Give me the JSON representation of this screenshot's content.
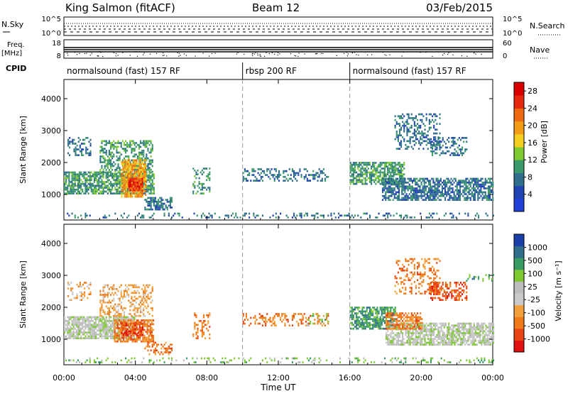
{
  "header": {
    "station": "King Salmon (fitACF)",
    "beam": "Beam 12",
    "date": "03/Feb/2015"
  },
  "sky_panel": {
    "label": "N.Sky",
    "ticks_left": [
      "10^5",
      "10^0"
    ],
    "right_label": "N.Search",
    "ticks_right": [
      "10^5",
      "10^0"
    ]
  },
  "freq_panel": {
    "label_line1": "Freq.",
    "label_line2": "[MHz]",
    "ticks_left": [
      "18",
      "8"
    ],
    "right_label": "Nave",
    "ticks_right": [
      "60",
      "0"
    ]
  },
  "cpid": {
    "label": "CPID",
    "segments": [
      {
        "name": "normalsound (fast) 157 RF",
        "start": 0,
        "end": 10
      },
      {
        "name": "rbsp 200 RF",
        "start": 10,
        "end": 16
      },
      {
        "name": "normalsound (fast) 157 RF",
        "start": 16,
        "end": 24
      }
    ]
  },
  "colors": {
    "power": [
      "#1f3fd6",
      "#2244b3",
      "#2f6f8c",
      "#3c9a6a",
      "#7ec832",
      "#f2cf1e",
      "#f39c16",
      "#ee6a12",
      "#e62a12",
      "#d90000"
    ],
    "velocity": [
      "#1a3fa8",
      "#2f6f8c",
      "#3a9a64",
      "#7ec832",
      "#bdbdbd",
      "#c9c9c9",
      "#f2a13a",
      "#ee7a18",
      "#e84512",
      "#e01010"
    ]
  },
  "chart_data": [
    {
      "type": "heatmap",
      "name": "power-panel",
      "ylabel": "Slant Range [km]",
      "xlabel": "Time UT",
      "xlim": [
        0,
        24
      ],
      "ylim": [
        200,
        4600
      ],
      "xticks": [
        {
          "v": 0,
          "label": "00:00"
        },
        {
          "v": 4,
          "label": "04:00"
        },
        {
          "v": 8,
          "label": "08:00"
        },
        {
          "v": 12,
          "label": "12:00"
        },
        {
          "v": 16,
          "label": "16:00"
        },
        {
          "v": 20,
          "label": "20:00"
        },
        {
          "v": 24,
          "label": "00:00"
        }
      ],
      "yticks": [
        1000,
        2000,
        3000,
        4000
      ],
      "colorbar": {
        "label": "Power [dB]",
        "ticks": [
          "4",
          "8",
          "12",
          "16",
          "20",
          "24",
          "28"
        ],
        "range": [
          0,
          30
        ]
      },
      "bands": [
        {
          "t0": 0.0,
          "t1": 5.0,
          "r0": 1000,
          "r1": 1700,
          "v": 9,
          "d": 0.75
        },
        {
          "t0": 2.0,
          "t1": 5.0,
          "r0": 1500,
          "r1": 2700,
          "v": 11,
          "d": 0.5
        },
        {
          "t0": 3.2,
          "t1": 4.6,
          "r0": 900,
          "r1": 2100,
          "v": 20,
          "d": 0.8
        },
        {
          "t0": 3.6,
          "t1": 4.4,
          "r0": 1100,
          "r1": 1500,
          "v": 26,
          "d": 0.9
        },
        {
          "t0": 0.2,
          "t1": 1.5,
          "r0": 2200,
          "r1": 2800,
          "v": 7,
          "d": 0.4
        },
        {
          "t0": 4.5,
          "t1": 6.0,
          "r0": 500,
          "r1": 900,
          "v": 6,
          "d": 0.6
        },
        {
          "t0": 7.2,
          "t1": 8.2,
          "r0": 1000,
          "r1": 1800,
          "v": 9,
          "d": 0.35
        },
        {
          "t0": 10.0,
          "t1": 14.8,
          "r0": 1400,
          "r1": 1800,
          "v": 6,
          "d": 0.35
        },
        {
          "t0": 16.0,
          "t1": 19.0,
          "r0": 1300,
          "r1": 2000,
          "v": 10,
          "d": 0.7
        },
        {
          "t0": 17.8,
          "t1": 24.0,
          "r0": 800,
          "r1": 1500,
          "v": 7,
          "d": 0.7
        },
        {
          "t0": 18.5,
          "t1": 21.0,
          "r0": 2400,
          "r1": 3500,
          "v": 7,
          "d": 0.35
        },
        {
          "t0": 20.5,
          "t1": 22.5,
          "r0": 2200,
          "r1": 2800,
          "v": 6,
          "d": 0.4
        },
        {
          "t0": 0.0,
          "t1": 24.0,
          "r0": 250,
          "r1": 400,
          "v": 6,
          "d": 0.22
        }
      ]
    },
    {
      "type": "heatmap",
      "name": "velocity-panel",
      "ylabel": "Slant Range [km]",
      "xlabel": "Time UT",
      "xlim": [
        0,
        24
      ],
      "ylim": [
        200,
        4600
      ],
      "xticks": [
        {
          "v": 0,
          "label": "00:00"
        },
        {
          "v": 4,
          "label": "04:00"
        },
        {
          "v": 8,
          "label": "08:00"
        },
        {
          "v": 12,
          "label": "12:00"
        },
        {
          "v": 16,
          "label": "16:00"
        },
        {
          "v": 20,
          "label": "20:00"
        },
        {
          "v": 24,
          "label": "00:00"
        }
      ],
      "yticks": [
        1000,
        2000,
        3000,
        4000
      ],
      "colorbar": {
        "label": "Velocity [m s⁻¹]",
        "ticks": [
          "1000",
          "500",
          "100",
          "25",
          "-25",
          "-100",
          "-500",
          "-1000"
        ]
      },
      "bands": [
        {
          "t0": 0.0,
          "t1": 4.0,
          "r0": 1000,
          "r1": 1700,
          "v": 4,
          "d": 0.8
        },
        {
          "t0": 2.8,
          "t1": 5.0,
          "r0": 900,
          "r1": 1600,
          "v": 7,
          "d": 0.75
        },
        {
          "t0": 3.2,
          "t1": 4.4,
          "r0": 1100,
          "r1": 1500,
          "v": 8,
          "d": 0.6
        },
        {
          "t0": 2.0,
          "t1": 5.0,
          "r0": 1700,
          "r1": 2700,
          "v": 6,
          "d": 0.4
        },
        {
          "t0": 0.2,
          "t1": 1.5,
          "r0": 2200,
          "r1": 2800,
          "v": 6,
          "d": 0.35
        },
        {
          "t0": 4.5,
          "t1": 6.0,
          "r0": 500,
          "r1": 900,
          "v": 7,
          "d": 0.45
        },
        {
          "t0": 7.2,
          "t1": 8.2,
          "r0": 1000,
          "r1": 1800,
          "v": 7,
          "d": 0.3
        },
        {
          "t0": 10.0,
          "t1": 14.8,
          "r0": 1400,
          "r1": 1800,
          "v": 7,
          "d": 0.3
        },
        {
          "t0": 13.5,
          "t1": 14.8,
          "r0": 1400,
          "r1": 1800,
          "v": 3,
          "d": 0.3
        },
        {
          "t0": 16.0,
          "t1": 18.5,
          "r0": 1300,
          "r1": 2000,
          "v": 2,
          "d": 0.7
        },
        {
          "t0": 18.0,
          "t1": 24.0,
          "r0": 800,
          "r1": 1500,
          "v": 4,
          "d": 0.75
        },
        {
          "t0": 18.0,
          "t1": 20.0,
          "r0": 1300,
          "r1": 1800,
          "v": 7,
          "d": 0.6
        },
        {
          "t0": 18.5,
          "t1": 21.0,
          "r0": 2400,
          "r1": 3500,
          "v": 7,
          "d": 0.35
        },
        {
          "t0": 20.5,
          "t1": 22.5,
          "r0": 2200,
          "r1": 2800,
          "v": 8,
          "d": 0.5
        },
        {
          "t0": 22.5,
          "t1": 24.0,
          "r0": 2800,
          "r1": 3000,
          "v": 2,
          "d": 0.35
        },
        {
          "t0": 0.0,
          "t1": 24.0,
          "r0": 250,
          "r1": 400,
          "v": 3,
          "d": 0.2
        }
      ]
    }
  ]
}
